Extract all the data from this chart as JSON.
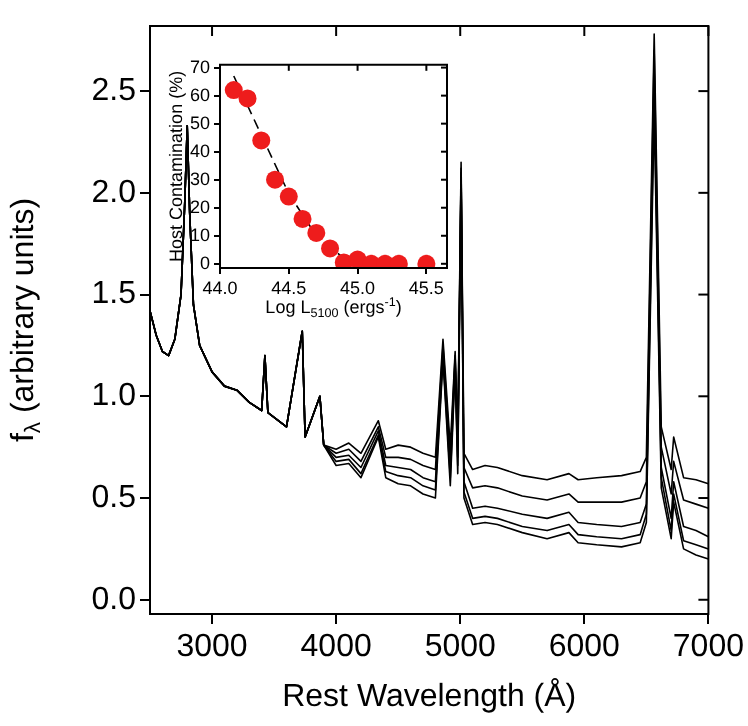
{
  "chart_data": [
    {
      "type": "line",
      "xlabel": "Rest Wavelength (Å)",
      "ylabel": "f$_{λ}$ (arbitrary units)",
      "xlim": [
        2500,
        7000
      ],
      "ylim": [
        -0.07,
        2.82
      ],
      "xticks": [
        3000,
        4000,
        5000,
        6000,
        7000
      ],
      "yticks": [
        {
          "value": 0,
          "label": "0.0"
        },
        {
          "value": 0.5,
          "label": "0.5"
        },
        {
          "value": 1,
          "label": "1.0"
        },
        {
          "value": 1.5,
          "label": "1.5"
        },
        {
          "value": 2,
          "label": "2.0"
        },
        {
          "value": 2.5,
          "label": "2.5"
        }
      ],
      "marker": "none",
      "x": [
        2500,
        2550,
        2600,
        2650,
        2700,
        2750,
        2780,
        2800,
        2820,
        2850,
        2900,
        3000,
        3100,
        3200,
        3300,
        3400,
        3426,
        3450,
        3600,
        3727,
        3750,
        3869,
        3900,
        4000,
        4102,
        4200,
        4340,
        4400,
        4500,
        4600,
        4700,
        4800,
        4861,
        4920,
        4959,
        4980,
        5007,
        5030,
        5100,
        5200,
        5300,
        5500,
        5700,
        5876,
        5950,
        6100,
        6300,
        6450,
        6500,
        6563,
        6620,
        6700,
        6720,
        6800,
        6900,
        7000
      ],
      "series": [
        {
          "color": "#000000",
          "values": [
            1.42,
            1.3,
            1.22,
            1.2,
            1.28,
            1.5,
            1.95,
            2.33,
            1.9,
            1.45,
            1.25,
            1.12,
            1.05,
            1.03,
            0.97,
            0.93,
            1.2,
            0.92,
            0.85,
            1.32,
            0.8,
            1.0,
            0.76,
            0.74,
            0.77,
            0.72,
            0.88,
            0.74,
            0.76,
            0.75,
            0.72,
            0.7,
            1.28,
            0.75,
            1.22,
            0.8,
            2.15,
            0.72,
            0.64,
            0.66,
            0.65,
            0.61,
            0.59,
            0.62,
            0.59,
            0.6,
            0.61,
            0.63,
            0.7,
            2.78,
            0.85,
            0.64,
            0.8,
            0.6,
            0.59,
            0.57
          ]
        },
        {
          "color": "#000000",
          "values": [
            1.42,
            1.3,
            1.22,
            1.2,
            1.28,
            1.5,
            1.95,
            2.33,
            1.9,
            1.45,
            1.25,
            1.12,
            1.05,
            1.03,
            0.97,
            0.93,
            1.2,
            0.92,
            0.85,
            1.32,
            0.8,
            1.0,
            0.76,
            0.72,
            0.74,
            0.68,
            0.85,
            0.7,
            0.7,
            0.69,
            0.66,
            0.64,
            1.25,
            0.7,
            1.2,
            0.75,
            2.12,
            0.65,
            0.55,
            0.56,
            0.55,
            0.51,
            0.49,
            0.52,
            0.48,
            0.48,
            0.48,
            0.5,
            0.58,
            2.7,
            0.75,
            0.52,
            0.68,
            0.49,
            0.47,
            0.45
          ]
        },
        {
          "color": "#000000",
          "values": [
            1.42,
            1.3,
            1.22,
            1.2,
            1.28,
            1.5,
            1.95,
            2.33,
            1.9,
            1.45,
            1.25,
            1.12,
            1.05,
            1.03,
            0.97,
            0.93,
            1.2,
            0.92,
            0.85,
            1.32,
            0.8,
            1.0,
            0.76,
            0.7,
            0.71,
            0.65,
            0.83,
            0.66,
            0.65,
            0.64,
            0.6,
            0.58,
            1.22,
            0.65,
            1.18,
            0.7,
            2.1,
            0.58,
            0.45,
            0.46,
            0.45,
            0.42,
            0.4,
            0.43,
            0.38,
            0.37,
            0.36,
            0.38,
            0.47,
            2.6,
            0.65,
            0.4,
            0.58,
            0.36,
            0.34,
            0.31
          ]
        },
        {
          "color": "#000000",
          "values": [
            1.42,
            1.3,
            1.22,
            1.2,
            1.28,
            1.5,
            1.95,
            2.33,
            1.9,
            1.45,
            1.25,
            1.12,
            1.05,
            1.03,
            0.97,
            0.93,
            1.2,
            0.92,
            0.85,
            1.32,
            0.8,
            1.0,
            0.76,
            0.68,
            0.69,
            0.62,
            0.81,
            0.63,
            0.61,
            0.6,
            0.56,
            0.54,
            1.2,
            0.6,
            1.16,
            0.66,
            2.08,
            0.53,
            0.4,
            0.41,
            0.4,
            0.36,
            0.34,
            0.37,
            0.32,
            0.31,
            0.3,
            0.32,
            0.42,
            2.5,
            0.6,
            0.34,
            0.52,
            0.29,
            0.27,
            0.25
          ]
        },
        {
          "color": "#000000",
          "values": [
            1.42,
            1.3,
            1.22,
            1.2,
            1.28,
            1.5,
            1.95,
            2.33,
            1.9,
            1.45,
            1.25,
            1.12,
            1.05,
            1.03,
            0.97,
            0.93,
            1.2,
            0.92,
            0.85,
            1.32,
            0.8,
            1.0,
            0.76,
            0.66,
            0.67,
            0.6,
            0.8,
            0.6,
            0.57,
            0.56,
            0.52,
            0.5,
            1.18,
            0.56,
            1.14,
            0.62,
            2.05,
            0.5,
            0.37,
            0.38,
            0.37,
            0.33,
            0.3,
            0.33,
            0.28,
            0.27,
            0.26,
            0.28,
            0.38,
            2.4,
            0.55,
            0.3,
            0.48,
            0.25,
            0.22,
            0.2
          ]
        }
      ]
    },
    {
      "type": "scatter",
      "xlabel": "Log L$_{5100}$ (ergs$^{-1}$)",
      "ylabel": "Host Contamination (%)",
      "xlim": [
        44.0,
        45.65
      ],
      "ylim": [
        -1.5,
        71
      ],
      "xticks": [
        {
          "value": 44,
          "label": "44.0"
        },
        {
          "value": 44.5,
          "label": "44.5"
        },
        {
          "value": 45,
          "label": "45.0"
        },
        {
          "value": 45.5,
          "label": "45.5"
        }
      ],
      "yticks": [
        0,
        10,
        20,
        30,
        40,
        50,
        60,
        70
      ],
      "series": [
        {
          "type": "scatter",
          "color": "#ee1c1c",
          "marker": "circle",
          "x": [
            44.1,
            44.2,
            44.3,
            44.4,
            44.5,
            44.6,
            44.7,
            44.8,
            44.9,
            45.0,
            45.1,
            45.2,
            45.3,
            45.5
          ],
          "values": [
            62,
            59,
            44,
            30,
            24,
            16,
            11,
            5.5,
            0.5,
            1.5,
            0,
            0,
            0,
            0
          ]
        },
        {
          "type": "line",
          "color": "#000000",
          "marker": "none",
          "line_style": "dashed",
          "x": [
            44.1,
            44.3,
            44.5,
            44.7,
            44.9,
            45.0
          ],
          "values": [
            67,
            46,
            25,
            10,
            2,
            0
          ]
        }
      ]
    }
  ]
}
